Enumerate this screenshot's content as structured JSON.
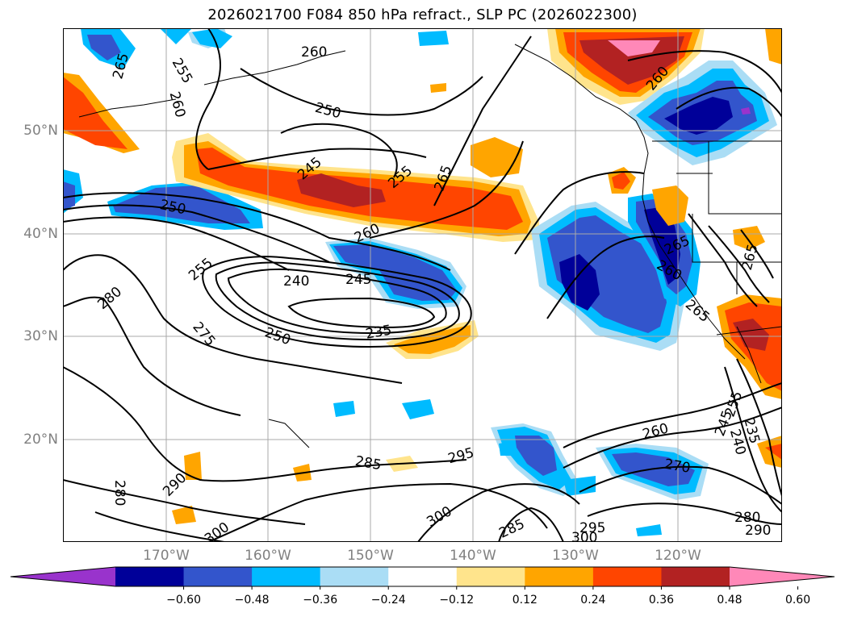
{
  "title": "2026021700 F084 850 hPa refract., SLP PC (2026022300)",
  "lat_labels": [
    "50°N",
    "40°N",
    "30°N",
    "20°N"
  ],
  "lon_labels": [
    "170°W",
    "160°W",
    "150°W",
    "140°W",
    "130°W",
    "120°W"
  ],
  "colorbar": {
    "ticks": [
      "−0.60",
      "−0.48",
      "−0.36",
      "−0.24",
      "−0.12",
      "0.12",
      "0.24",
      "0.36",
      "0.48",
      "0.60"
    ],
    "colors": [
      "#9933cc",
      "#000099",
      "#3355cc",
      "#00bbff",
      "#aaddf5",
      "#ffffff",
      "#ffe48c",
      "#ffa500",
      "#ff4500",
      "#b22222",
      "#ff88b8"
    ]
  },
  "contour_labels": [
    "265",
    "255",
    "260",
    "260",
    "250",
    "245",
    "255",
    "265",
    "260",
    "250",
    "255",
    "240",
    "245",
    "235",
    "250",
    "275",
    "280",
    "285",
    "295",
    "300",
    "290",
    "300",
    "280",
    "285",
    "295",
    "300",
    "260",
    "270",
    "255",
    "245",
    "240",
    "235",
    "280",
    "290",
    "265",
    "265",
    "260",
    "265",
    "260"
  ]
}
